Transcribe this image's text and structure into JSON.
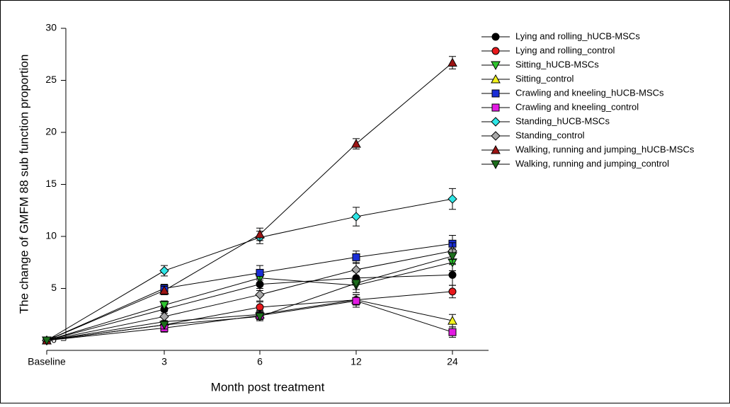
{
  "chart_data": {
    "type": "line",
    "ylabel": "The change of GMFM 88 sub function proportion",
    "xlabel": "Month post treatment",
    "categories": [
      "Baseline",
      "3",
      "6",
      "12",
      "24"
    ],
    "ylim": [
      0,
      30
    ],
    "yticks": [
      0,
      5,
      10,
      15,
      20,
      25,
      30
    ],
    "grid": false,
    "series": [
      {
        "name": "Lying and rolling_hUCB-MSCs",
        "color": "#000000",
        "marker": "circle",
        "values": [
          0,
          3.0,
          5.4,
          6.0,
          6.3
        ],
        "errors": [
          0,
          0.4,
          0.6,
          0.6,
          1.0
        ]
      },
      {
        "name": "Lying and rolling_control",
        "color": "#e8191c",
        "marker": "circle",
        "values": [
          0,
          1.5,
          3.2,
          3.9,
          4.7
        ],
        "errors": [
          0,
          0.4,
          0.5,
          0.5,
          0.6
        ]
      },
      {
        "name": "Sitting_hUCB-MSCs",
        "color": "#2fc42f",
        "marker": "triangle-down",
        "values": [
          0,
          3.4,
          6.0,
          5.3,
          7.5
        ],
        "errors": [
          0,
          0.4,
          0.6,
          0.7,
          0.8
        ]
      },
      {
        "name": "Sitting_control",
        "color": "#f2f21a",
        "marker": "triangle-up",
        "values": [
          0,
          1.8,
          2.5,
          3.9,
          1.9
        ],
        "errors": [
          0,
          0.4,
          0.4,
          0.5,
          0.6
        ]
      },
      {
        "name": "Crawling and kneeling_hUCB-MSCs",
        "color": "#1a2ed6",
        "marker": "square",
        "values": [
          0,
          5.0,
          6.5,
          8.0,
          9.3
        ],
        "errors": [
          0,
          0.4,
          0.7,
          0.6,
          0.8
        ]
      },
      {
        "name": "Crawling and kneeling_control",
        "color": "#e21ae2",
        "marker": "square",
        "values": [
          0,
          1.2,
          2.4,
          3.8,
          0.8
        ],
        "errors": [
          0,
          0.4,
          0.4,
          0.6,
          0.5
        ]
      },
      {
        "name": "Standing_hUCB-MSCs",
        "color": "#2ee6e6",
        "marker": "diamond",
        "values": [
          0,
          6.7,
          9.9,
          11.9,
          13.6
        ],
        "errors": [
          0,
          0.5,
          0.6,
          0.9,
          1.0
        ]
      },
      {
        "name": "Standing_control",
        "color": "#a8a8a8",
        "marker": "diamond",
        "values": [
          0,
          2.3,
          4.4,
          6.8,
          8.6
        ],
        "errors": [
          0,
          0.5,
          0.6,
          0.7,
          0.8
        ]
      },
      {
        "name": "Walking, running and jumping_hUCB-MSCs",
        "color": "#9c1414",
        "marker": "triangle-up",
        "values": [
          0,
          4.8,
          10.2,
          18.9,
          26.7
        ],
        "errors": [
          0,
          0.4,
          0.6,
          0.5,
          0.6
        ]
      },
      {
        "name": "Walking, running and jumping_control",
        "color": "#1c6e1c",
        "marker": "triangle-down",
        "values": [
          0,
          1.5,
          2.3,
          5.5,
          8.1
        ],
        "errors": [
          0,
          0.4,
          0.4,
          0.6,
          0.7
        ]
      }
    ]
  }
}
